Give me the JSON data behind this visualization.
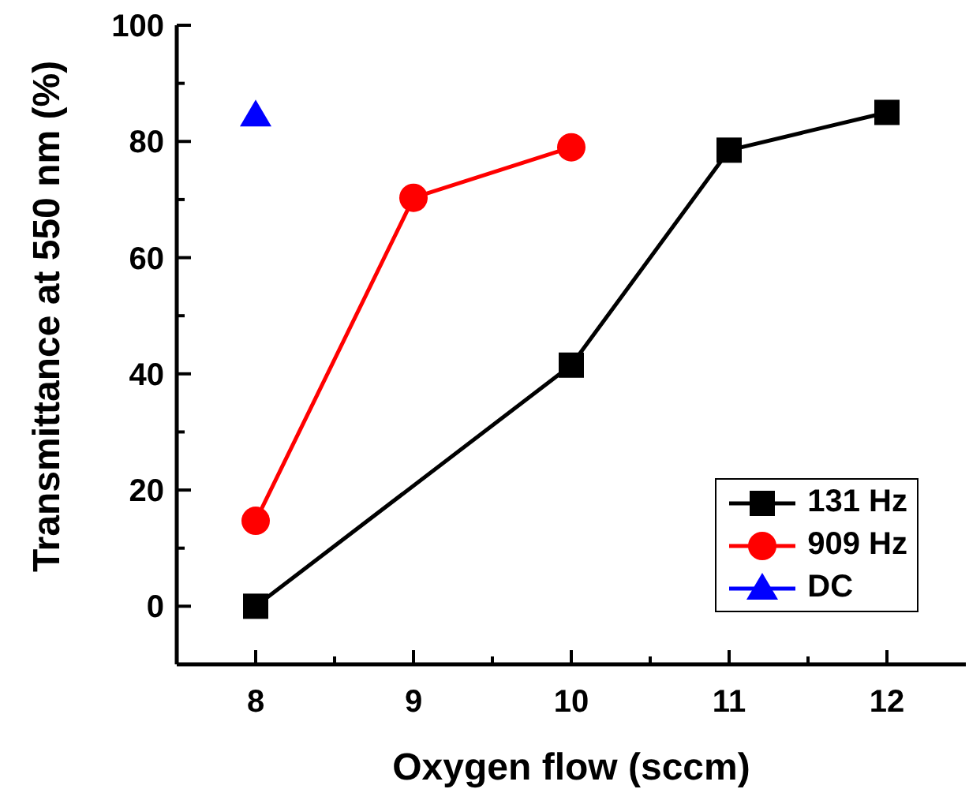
{
  "chart_data": {
    "type": "line",
    "xlabel": "Oxygen flow (sccm)",
    "ylabel": "Transmittance at 550 nm (%)",
    "x": [
      8,
      9,
      10,
      11,
      12
    ],
    "series": [
      {
        "name": "131 Hz",
        "color": "#000000",
        "marker": "square",
        "values": [
          0,
          null,
          41.5,
          78.5,
          85
        ]
      },
      {
        "name": "909 Hz",
        "color": "#ff0000",
        "marker": "circle",
        "values": [
          14.7,
          70.3,
          79,
          null,
          null
        ]
      },
      {
        "name": "DC",
        "color": "#0000ff",
        "marker": "triangle",
        "values": [
          84.5,
          null,
          null,
          null,
          null
        ]
      }
    ],
    "xlim": [
      7.5,
      12.5
    ],
    "xticks": [
      8,
      {
        "value": 8.5,
        "label": null
      },
      9,
      {
        "value": 9.5,
        "label": null
      },
      10,
      {
        "value": 10.5,
        "label": null
      },
      11,
      {
        "value": 11.5,
        "label": null
      },
      12
    ],
    "ylim": [
      -10,
      100
    ],
    "yticks": [
      0,
      {
        "value": 10,
        "label": null
      },
      20,
      {
        "value": 30,
        "label": null
      },
      40,
      {
        "value": 50,
        "label": null
      },
      60,
      {
        "value": 70,
        "label": null
      },
      80,
      {
        "value": 90,
        "label": null
      },
      100
    ],
    "grid": false,
    "legend": "bottom right",
    "line_style": "solid"
  }
}
